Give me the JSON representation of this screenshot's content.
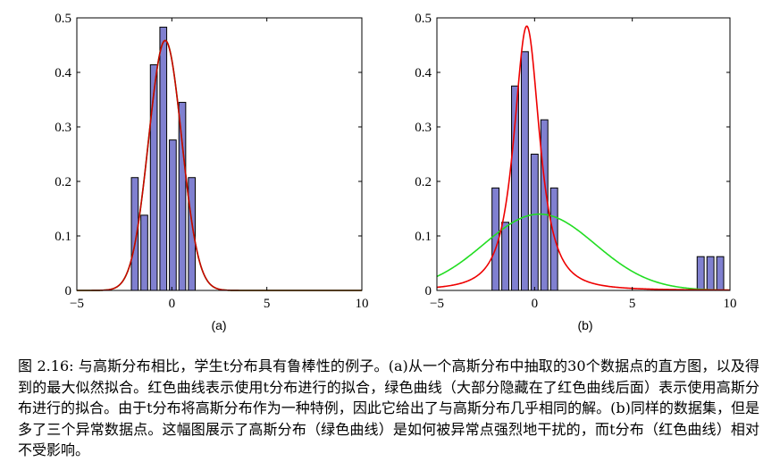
{
  "chart_data": [
    {
      "type": "bar",
      "sublabel": "(a)",
      "xlim": [
        -5,
        10
      ],
      "ylim": [
        0,
        0.5
      ],
      "xticks": [
        -5,
        0,
        5,
        10
      ],
      "yticks": [
        0,
        0.1,
        0.2,
        0.3,
        0.4,
        0.5
      ],
      "xtick_labels": [
        "−5",
        "0",
        "5",
        "10"
      ],
      "ytick_labels": [
        "0",
        "0.1",
        "0.2",
        "0.3",
        "0.4",
        "0.5"
      ],
      "bar_color": "#8080d0",
      "bars": [
        {
          "x": -1.95,
          "value": 0.207
        },
        {
          "x": -1.45,
          "value": 0.138
        },
        {
          "x": -0.95,
          "value": 0.414
        },
        {
          "x": -0.45,
          "value": 0.483
        },
        {
          "x": 0.05,
          "value": 0.276
        },
        {
          "x": 0.55,
          "value": 0.345
        },
        {
          "x": 1.05,
          "value": 0.207
        }
      ],
      "series": [
        {
          "color": "#00dd00",
          "kind": "gaussian",
          "mean": -0.35,
          "sd": 0.87
        },
        {
          "color": "#cc0000",
          "kind": "student-t",
          "loc": -0.35,
          "scale": 0.87,
          "dof": 1000
        }
      ]
    },
    {
      "type": "bar",
      "sublabel": "(b)",
      "xlim": [
        -5,
        10
      ],
      "ylim": [
        0,
        0.5
      ],
      "xticks": [
        -5,
        0,
        5,
        10
      ],
      "yticks": [
        0,
        0.1,
        0.2,
        0.3,
        0.4,
        0.5
      ],
      "xtick_labels": [
        "−5",
        "0",
        "5",
        "10"
      ],
      "ytick_labels": [
        "0",
        "0.1",
        "0.2",
        "0.3",
        "0.4",
        "0.5"
      ],
      "bar_color": "#8080d0",
      "bars": [
        {
          "x": -2.0,
          "value": 0.188
        },
        {
          "x": -1.5,
          "value": 0.125
        },
        {
          "x": -1.0,
          "value": 0.375
        },
        {
          "x": -0.5,
          "value": 0.438
        },
        {
          "x": 0.0,
          "value": 0.25
        },
        {
          "x": 0.5,
          "value": 0.313
        },
        {
          "x": 1.0,
          "value": 0.188
        },
        {
          "x": 8.5,
          "value": 0.062
        },
        {
          "x": 9.0,
          "value": 0.062
        },
        {
          "x": 9.5,
          "value": 0.062
        }
      ],
      "series": [
        {
          "color": "#22dd22",
          "kind": "gaussian",
          "mean": 0.25,
          "sd": 2.85
        },
        {
          "color": "#ee0000",
          "kind": "student-t",
          "loc": -0.4,
          "scale": 0.72,
          "dof": 1.8
        }
      ]
    }
  ],
  "caption": {
    "text": "图 2.16: 与高斯分布相比，学生t分布具有鲁棒性的例子。(a)从一个高斯分布中抽取的30个数据点的直方图，以及得到的最大似然拟合。红色曲线表示使用t分布进行的拟合，绿色曲线（大部分隐藏在了红色曲线后面）表示使用高斯分布进行的拟合。由于t分布将高斯分布作为一种特例，因此它给出了与高斯分布几乎相同的解。(b)同样的数据集，但是多了三个异常数据点。这幅图展示了高斯分布（绿色曲线）是如何被异常点强烈地干扰的，而t分布（红色曲线）相对不受影响。"
  }
}
